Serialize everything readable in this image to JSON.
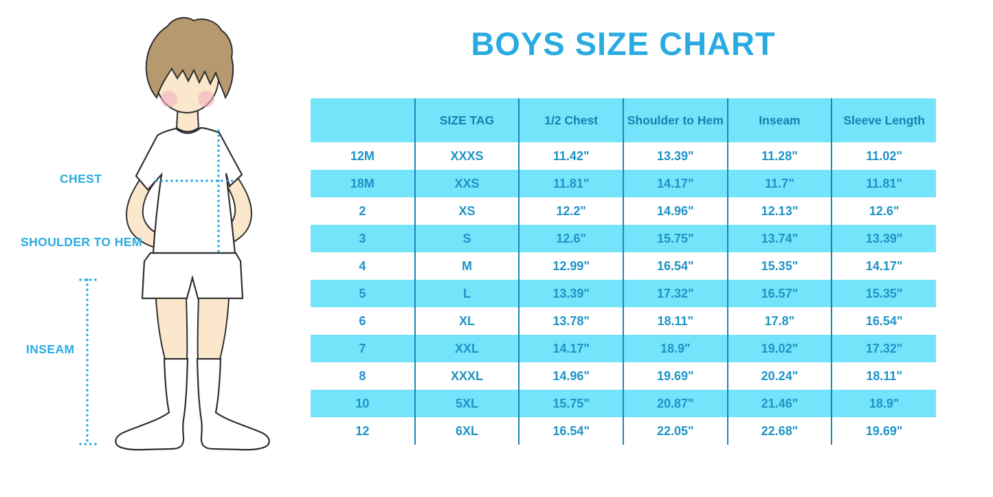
{
  "title": "BOYS SIZE CHART",
  "figure": {
    "chest_label": "CHEST",
    "shoulder_to_hem_label": "SHOULDER TO HEM",
    "inseam_label": "INSEAM"
  },
  "colors": {
    "accent_blue": "#29ABE2",
    "table_light_blue": "#74E4FB",
    "table_line_blue": "#1A85B9",
    "table_text_blue": "#1D93C6",
    "table_header_text_blue": "#1980AE",
    "skin": "#FBE8CC",
    "hair": "#B6996E",
    "blush": "#F2AFC1"
  },
  "chart_data": {
    "type": "table",
    "title": "BOYS SIZE CHART",
    "units": "inches",
    "legend_position": "none",
    "grid": "vertical-dividers-only",
    "row_striping": "white / light-blue alternating, header light-blue",
    "columns": [
      "",
      "SIZE TAG",
      "1/2 Chest",
      "Shoulder to Hem",
      "Inseam",
      "Sleeve Length"
    ],
    "rows": [
      [
        "12M",
        "XXXS",
        "11.42\"",
        "13.39\"",
        "11.28\"",
        "11.02\""
      ],
      [
        "18M",
        "XXS",
        "11.81\"",
        "14.17\"",
        "11.7\"",
        "11.81\""
      ],
      [
        "2",
        "XS",
        "12.2\"",
        "14.96\"",
        "12.13\"",
        "12.6\""
      ],
      [
        "3",
        "S",
        "12.6\"",
        "15.75\"",
        "13.74\"",
        "13.39\""
      ],
      [
        "4",
        "M",
        "12.99\"",
        "16.54\"",
        "15.35\"",
        "14.17\""
      ],
      [
        "5",
        "L",
        "13.39\"",
        "17.32\"",
        "16.57\"",
        "15.35\""
      ],
      [
        "6",
        "XL",
        "13.78\"",
        "18.11\"",
        "17.8\"",
        "16.54\""
      ],
      [
        "7",
        "XXL",
        "14.17\"",
        "18.9\"",
        "19.02\"",
        "17.32\""
      ],
      [
        "8",
        "XXXL",
        "14.96\"",
        "19.69\"",
        "20.24\"",
        "18.11\""
      ],
      [
        "10",
        "5XL",
        "15.75\"",
        "20.87\"",
        "21.46\"",
        "18.9\""
      ],
      [
        "12",
        "6XL",
        "16.54\"",
        "22.05\"",
        "22.68\"",
        "19.69\""
      ]
    ]
  }
}
